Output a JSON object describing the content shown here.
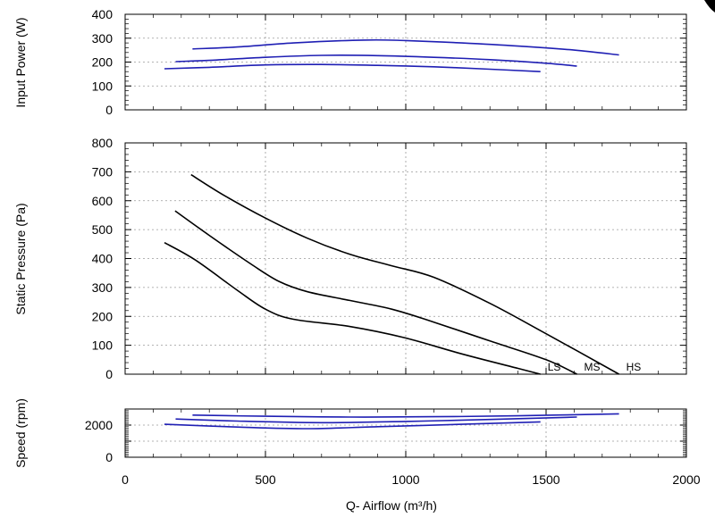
{
  "chart_data": [
    {
      "type": "line",
      "ylabel": "Input Power (W)",
      "xlim": [
        0,
        2000
      ],
      "ylim": [
        0,
        400
      ],
      "y_ticks": [
        "0",
        "100",
        "200",
        "300",
        "400"
      ],
      "grid": true,
      "line_color": "#1f1fb4",
      "series": [
        {
          "name": "",
          "x": [
            240,
            400,
            600,
            850,
            1000,
            1200,
            1400,
            1600,
            1760
          ],
          "y": [
            255,
            263,
            280,
            292,
            290,
            280,
            267,
            250,
            230
          ]
        },
        {
          "name": "",
          "x": [
            180,
            300,
            500,
            700,
            900,
            1100,
            1300,
            1500,
            1610
          ],
          "y": [
            202,
            207,
            220,
            228,
            227,
            220,
            210,
            195,
            183
          ]
        },
        {
          "name": "",
          "x": [
            140,
            300,
            500,
            700,
            900,
            1100,
            1300,
            1480
          ],
          "y": [
            172,
            178,
            188,
            190,
            186,
            180,
            170,
            160
          ]
        }
      ]
    },
    {
      "type": "line",
      "ylabel": "Static Pressure (Pa)",
      "xlim": [
        0,
        2000
      ],
      "ylim": [
        0,
        800
      ],
      "y_ticks": [
        "0",
        "100",
        "200",
        "300",
        "400",
        "500",
        "600",
        "700",
        "800"
      ],
      "grid": true,
      "line_color": "#000000",
      "series": [
        {
          "name": "HS",
          "x": [
            235,
            350,
            500,
            650,
            800,
            950,
            1100,
            1300,
            1500,
            1760
          ],
          "y": [
            690,
            620,
            540,
            470,
            415,
            375,
            335,
            245,
            140,
            0
          ]
        },
        {
          "name": "MS",
          "x": [
            178,
            300,
            450,
            550,
            650,
            800,
            950,
            1100,
            1300,
            1500,
            1610
          ],
          "y": [
            565,
            480,
            380,
            320,
            285,
            255,
            225,
            180,
            115,
            50,
            0
          ]
        },
        {
          "name": "LS",
          "x": [
            140,
            250,
            400,
            500,
            600,
            800,
            1000,
            1200,
            1400,
            1480
          ],
          "y": [
            455,
            395,
            290,
            225,
            190,
            165,
            125,
            70,
            20,
            0
          ]
        }
      ],
      "annotations": [
        "LS",
        "MS",
        "HS"
      ]
    },
    {
      "type": "line",
      "ylabel": "Speed (rpm)",
      "xlabel": "Q- Airflow (m³/h)",
      "xlim": [
        0,
        2000
      ],
      "ylim": [
        0,
        3000
      ],
      "x_ticks": [
        "0",
        "500",
        "1000",
        "1500",
        "2000"
      ],
      "y_ticks": [
        "0",
        "2000"
      ],
      "grid": true,
      "line_color": "#1f1fb4",
      "series": [
        {
          "name": "",
          "x": [
            240,
            500,
            800,
            1100,
            1400,
            1760
          ],
          "y": [
            2620,
            2550,
            2500,
            2520,
            2580,
            2700
          ]
        },
        {
          "name": "",
          "x": [
            180,
            400,
            700,
            1000,
            1300,
            1610
          ],
          "y": [
            2380,
            2250,
            2150,
            2230,
            2350,
            2500
          ]
        },
        {
          "name": "",
          "x": [
            140,
            400,
            650,
            900,
            1200,
            1480
          ],
          "y": [
            2050,
            1880,
            1780,
            1900,
            2050,
            2200
          ]
        }
      ]
    }
  ]
}
